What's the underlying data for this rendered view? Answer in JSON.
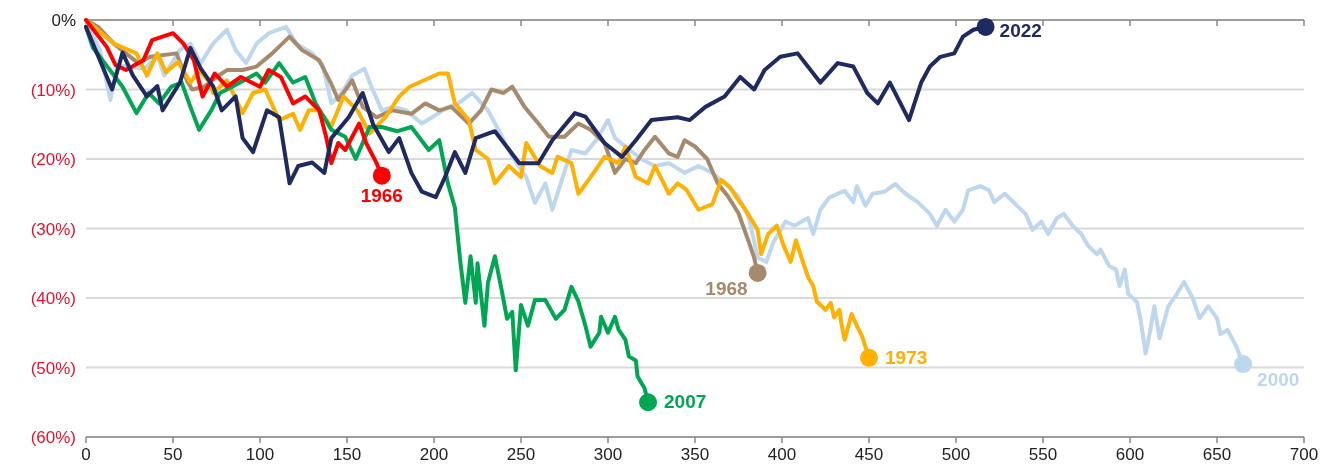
{
  "chart_data": {
    "type": "line",
    "xlim": [
      0,
      700
    ],
    "xticks": [
      0,
      50,
      100,
      150,
      200,
      250,
      300,
      350,
      400,
      450,
      500,
      550,
      600,
      650,
      700
    ],
    "ylim": [
      -60,
      0
    ],
    "yticks": [
      {
        "value": 0,
        "label": "0%"
      },
      {
        "value": -10,
        "label": "(10%)"
      },
      {
        "value": -20,
        "label": "(20%)"
      },
      {
        "value": -30,
        "label": "(30%)"
      },
      {
        "value": -40,
        "label": "(40%)"
      },
      {
        "value": -50,
        "label": "(50%)"
      },
      {
        "value": -60,
        "label": "(60%)"
      }
    ],
    "grid": "y",
    "marker": "none",
    "line_style": "solid",
    "series": [
      {
        "name": "2000",
        "color": "#bdd7ee",
        "x": [
          0,
          8,
          14,
          18,
          34,
          41,
          45,
          54,
          60,
          66,
          73,
          81,
          86,
          92,
          98,
          105,
          115,
          121,
          130,
          136,
          141,
          147,
          153,
          160,
          164,
          170,
          177,
          184,
          193,
          199,
          208,
          214,
          222,
          231,
          237,
          245,
          253,
          258,
          264,
          268,
          274,
          279,
          287,
          294,
          300,
          304,
          310,
          319,
          327,
          335,
          344,
          352,
          360,
          367,
          375,
          381,
          386,
          391,
          395,
          402,
          407,
          415,
          418,
          422,
          427,
          432,
          436,
          441,
          443,
          448,
          452,
          459,
          465,
          471,
          478,
          485,
          489,
          494,
          499,
          504,
          507,
          514,
          519,
          522,
          528,
          535,
          540,
          544,
          549,
          553,
          558,
          562,
          567,
          572,
          576,
          581,
          583,
          588,
          592,
          594,
          597,
          599,
          604,
          606,
          609,
          611,
          614,
          617,
          622,
          627,
          631,
          636,
          640,
          645,
          650,
          652,
          656,
          661,
          665
        ],
        "values": [
          0,
          -4.3,
          -11.5,
          -6.5,
          -7,
          -5,
          -8,
          -4.3,
          -3.4,
          -6.2,
          -3.4,
          -1.4,
          -4.3,
          -6.2,
          -3.4,
          -1.9,
          -1,
          -3.4,
          -4.8,
          -6.5,
          -12,
          -10.5,
          -8,
          -7,
          -9.6,
          -13,
          -12.5,
          -13,
          -14.9,
          -14,
          -12.5,
          -12,
          -10.5,
          -13,
          -15.8,
          -19.7,
          -22.6,
          -26.3,
          -23.5,
          -27.3,
          -22.6,
          -18.7,
          -19.2,
          -17,
          -14.4,
          -17,
          -18.2,
          -20,
          -21,
          -20.6,
          -22,
          -21,
          -22,
          -23.5,
          -25.4,
          -28.5,
          -34.2,
          -34.8,
          -32,
          -29,
          -29.6,
          -28.5,
          -30.8,
          -27.3,
          -25.6,
          -25,
          -24.6,
          -26.2,
          -23.9,
          -26.7,
          -25,
          -24.7,
          -23.6,
          -25,
          -26.2,
          -27.9,
          -29.6,
          -27.3,
          -29,
          -27.3,
          -24.5,
          -23.9,
          -24.5,
          -26.2,
          -25,
          -26.7,
          -27.9,
          -30.2,
          -29,
          -30.8,
          -28.5,
          -27.9,
          -29.6,
          -30.8,
          -32.5,
          -33.7,
          -33,
          -35.4,
          -35.9,
          -38.3,
          -35.9,
          -39.4,
          -40.6,
          -43,
          -48,
          -45.5,
          -41.2,
          -45.8,
          -41.2,
          -39.4,
          -37.7,
          -40,
          -42.9,
          -41.2,
          -42.9,
          -45.2,
          -44.6,
          -46.9,
          -49.5
        ]
      },
      {
        "name": "1968",
        "color": "#a68a6d",
        "x": [
          0,
          7,
          16,
          23,
          30,
          37,
          52,
          58,
          61,
          68,
          75,
          81,
          90,
          98,
          107,
          117,
          124,
          134,
          141,
          145,
          153,
          159,
          167,
          176,
          187,
          195,
          203,
          210,
          220,
          227,
          233,
          240,
          245,
          252,
          260,
          266,
          275,
          283,
          290,
          298,
          304,
          310,
          316,
          321,
          327,
          335,
          340,
          344,
          350,
          357,
          363,
          369,
          375,
          381,
          384,
          386
        ],
        "values": [
          0,
          -1,
          -3.4,
          -4.8,
          -6.2,
          -5.3,
          -4.8,
          -8.7,
          -10,
          -9.6,
          -8.2,
          -7.2,
          -7.2,
          -6.7,
          -4.8,
          -2.4,
          -4.3,
          -5.8,
          -9.2,
          -11.5,
          -8.7,
          -12.5,
          -14,
          -13,
          -13.5,
          -12,
          -13,
          -12.5,
          -14.9,
          -13,
          -10,
          -10.5,
          -9.6,
          -12.5,
          -14.9,
          -16.8,
          -16.8,
          -14.9,
          -15.8,
          -17.7,
          -22,
          -20,
          -20.6,
          -18.7,
          -16.8,
          -19.2,
          -19.7,
          -17.3,
          -18.2,
          -20,
          -23.5,
          -25.4,
          -27.8,
          -32,
          -34.2,
          -36.4
        ]
      },
      {
        "name": "1973",
        "color": "#ffb000",
        "x": [
          0,
          16,
          29,
          35,
          41,
          46,
          53,
          60,
          65,
          71,
          73,
          81,
          90,
          96,
          103,
          111,
          119,
          123,
          128,
          134,
          141,
          148,
          156,
          163,
          172,
          180,
          186,
          194,
          203,
          208,
          212,
          220,
          224,
          231,
          235,
          243,
          250,
          253,
          261,
          268,
          271,
          279,
          283,
          290,
          298,
          306,
          310,
          316,
          323,
          327,
          335,
          340,
          345,
          352,
          360,
          365,
          370,
          374,
          379,
          386,
          388,
          392,
          397,
          401,
          405,
          408,
          412,
          415,
          418,
          420,
          425,
          428,
          430,
          433,
          434,
          436,
          440,
          443,
          446,
          450
        ],
        "values": [
          0,
          -3.4,
          -4.8,
          -8,
          -4.8,
          -7.5,
          -6,
          -9,
          -7.2,
          -9,
          -10.5,
          -8.7,
          -13.4,
          -10.5,
          -10,
          -14.4,
          -13.5,
          -15.8,
          -13,
          -13,
          -15.3,
          -11,
          -13,
          -16.3,
          -14,
          -11,
          -9.6,
          -8.7,
          -7.7,
          -7.7,
          -12,
          -14.4,
          -18.7,
          -20,
          -23.5,
          -21,
          -22.6,
          -17.7,
          -21,
          -22,
          -19.7,
          -20.6,
          -25,
          -22.6,
          -19.7,
          -20.6,
          -18.2,
          -22.6,
          -23.5,
          -21,
          -25,
          -23.5,
          -24.4,
          -27.3,
          -26.5,
          -23,
          -24,
          -25.6,
          -27.3,
          -30.2,
          -33.7,
          -30.8,
          -29.6,
          -32.5,
          -34.8,
          -31.7,
          -34.8,
          -37,
          -38.3,
          -40.5,
          -41.7,
          -40.7,
          -42.8,
          -41.7,
          -43.5,
          -46,
          -42.3,
          -44,
          -45.5,
          -48.6
        ]
      },
      {
        "name": "2007",
        "color": "#00a651",
        "x": [
          0,
          4,
          21,
          29,
          36,
          42,
          49,
          55,
          60,
          65,
          72,
          77,
          84,
          98,
          103,
          111,
          119,
          126,
          132,
          141,
          149,
          155,
          163,
          170,
          179,
          187,
          197,
          203,
          208,
          212,
          215,
          218,
          221,
          224,
          225,
          229,
          231,
          235,
          239,
          242,
          245,
          247,
          250,
          254,
          258,
          264,
          270,
          275,
          279,
          283,
          287,
          290,
          295,
          296,
          300,
          304,
          306,
          310,
          312,
          316,
          317,
          321,
          323
        ],
        "values": [
          -1,
          -4,
          -9.6,
          -13.4,
          -10.5,
          -12,
          -9.6,
          -9,
          -12.5,
          -15.8,
          -13,
          -10.5,
          -9.6,
          -7.7,
          -9,
          -6.2,
          -9,
          -8.2,
          -12,
          -15.8,
          -16.8,
          -20,
          -15.4,
          -15.4,
          -16,
          -15.4,
          -18.7,
          -17.3,
          -23.5,
          -27,
          -34.5,
          -40.7,
          -34,
          -40.7,
          -35,
          -44,
          -37.8,
          -34,
          -39,
          -43,
          -42,
          -50.4,
          -41,
          -44,
          -40.3,
          -40.3,
          -43,
          -41.7,
          -38.4,
          -40.5,
          -44,
          -47,
          -45,
          -42.7,
          -45,
          -42.7,
          -44.5,
          -46,
          -48.4,
          -49,
          -51.3,
          -53,
          -55
        ]
      },
      {
        "name": "1966",
        "color": "#ff0000",
        "x": [
          0,
          12,
          17,
          23,
          33,
          38,
          50,
          56,
          62,
          67,
          74,
          81,
          89,
          100,
          105,
          112,
          119,
          126,
          134,
          138,
          141,
          145,
          149,
          157,
          161,
          167,
          170
        ],
        "values": [
          0,
          -3.9,
          -6.5,
          -7.2,
          -5.8,
          -2.9,
          -1.9,
          -3.4,
          -5.8,
          -11,
          -7.7,
          -9.6,
          -8.2,
          -9.6,
          -7.2,
          -8.2,
          -12,
          -11,
          -13,
          -16.8,
          -20.6,
          -17.7,
          -18.7,
          -14.9,
          -17.7,
          -20.6,
          -22.4
        ]
      },
      {
        "name": "2022",
        "color": "#1f2a5e",
        "x": [
          0,
          15,
          21,
          27,
          35,
          41,
          44,
          54,
          60,
          66,
          73,
          78,
          86,
          90,
          96,
          104,
          111,
          117,
          122,
          130,
          137,
          141,
          151,
          159,
          165,
          174,
          180,
          187,
          193,
          201,
          206,
          212,
          218,
          224,
          235,
          249,
          260,
          268,
          281,
          287,
          298,
          308,
          316,
          325,
          340,
          347,
          356,
          367,
          376,
          384,
          390,
          399,
          409,
          422,
          432,
          441,
          449,
          455,
          462,
          473,
          480,
          485,
          491,
          499,
          504,
          510,
          517
        ],
        "values": [
          -1,
          -10,
          -4.7,
          -8,
          -11,
          -9.5,
          -13,
          -9,
          -4,
          -7,
          -9.5,
          -13,
          -11,
          -17,
          -19,
          -13,
          -14,
          -23.5,
          -21,
          -20.5,
          -22,
          -17,
          -14,
          -10.5,
          -15,
          -19,
          -17,
          -22,
          -24.7,
          -25.5,
          -22.8,
          -19,
          -22,
          -17,
          -16,
          -20.6,
          -20.6,
          -17.3,
          -13.4,
          -13.9,
          -17.7,
          -19.7,
          -17.3,
          -14.4,
          -14,
          -14.4,
          -12.5,
          -11,
          -8.2,
          -10,
          -7.2,
          -5.3,
          -4.8,
          -9,
          -6.2,
          -6.7,
          -10.5,
          -12,
          -9,
          -14.4,
          -9,
          -6.7,
          -5.3,
          -4.8,
          -2.4,
          -1.4,
          -1
        ]
      }
    ]
  }
}
